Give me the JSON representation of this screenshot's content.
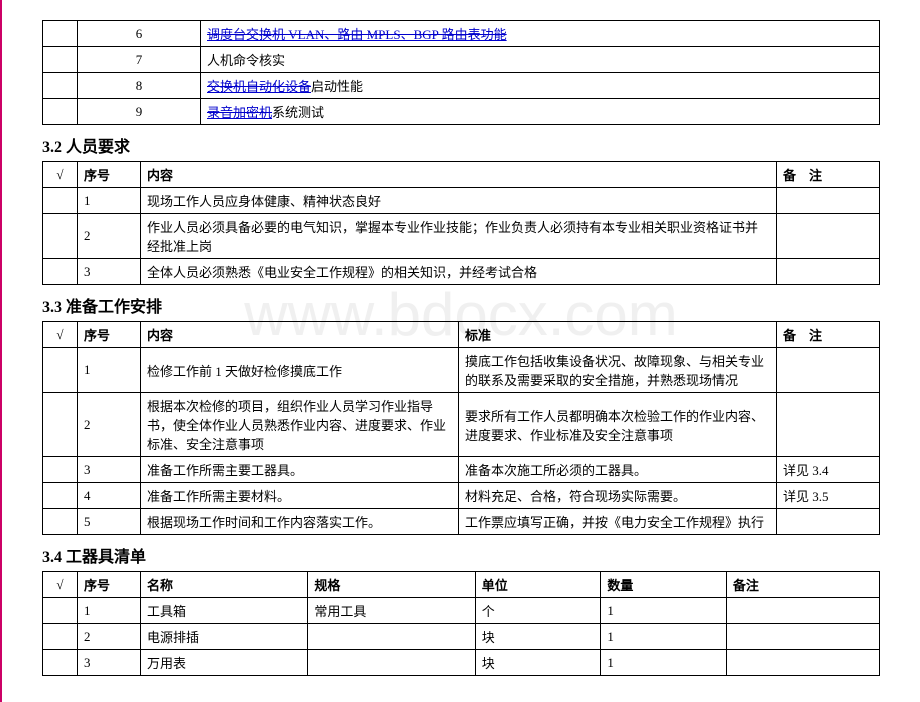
{
  "table0": {
    "rows": [
      {
        "num": "6",
        "content_parts": [
          {
            "t": "调度台交换机 VLAN、路由 MPLS、BGP 路由表功能",
            "cls": "strike"
          }
        ]
      },
      {
        "num": "7",
        "content_parts": [
          {
            "t": "人机命令核实",
            "cls": ""
          }
        ]
      },
      {
        "num": "8",
        "content_parts": [
          {
            "t": "交换机自动化设备",
            "cls": "strike"
          },
          {
            "t": "启动性能",
            "cls": ""
          }
        ]
      },
      {
        "num": "9",
        "content_parts": [
          {
            "t": "录音加密机",
            "cls": "strike"
          },
          {
            "t": "系统测试",
            "cls": ""
          }
        ]
      }
    ]
  },
  "section32": {
    "title": "3.2 人员要求",
    "headers": {
      "check": "√",
      "num": "序号",
      "content": "内容",
      "remark": "备　注"
    },
    "rows": [
      {
        "num": "1",
        "content": "现场工作人员应身体健康、精神状态良好",
        "remark": ""
      },
      {
        "num": "2",
        "content": "作业人员必须具备必要的电气知识，掌握本专业作业技能；作业负责人必须持有本专业相关职业资格证书并经批准上岗",
        "remark": ""
      },
      {
        "num": "3",
        "content": "全体人员必须熟悉《电业安全工作规程》的相关知识，并经考试合格",
        "remark": ""
      }
    ]
  },
  "section33": {
    "title": "3.3 准备工作安排",
    "headers": {
      "check": "√",
      "num": "序号",
      "content": "内容",
      "std": "标准",
      "remark": "备　注"
    },
    "rows": [
      {
        "num": "1",
        "content": "检修工作前 1 天做好检修摸底工作",
        "std": "摸底工作包括收集设备状况、故障现象、与相关专业的联系及需要采取的安全措施，并熟悉现场情况",
        "remark": ""
      },
      {
        "num": "2",
        "content": "根据本次检修的项目，组织作业人员学习作业指导书，使全体作业人员熟悉作业内容、进度要求、作业标准、安全注意事项",
        "std": "要求所有工作人员都明确本次检验工作的作业内容、进度要求、作业标准及安全注意事项",
        "remark": ""
      },
      {
        "num": "3",
        "content": "准备工作所需主要工器具。",
        "std": "准备本次施工所必须的工器具。",
        "remark": "详见 3.4"
      },
      {
        "num": "4",
        "content": "准备工作所需主要材料。",
        "std": "材料充足、合格，符合现场实际需要。",
        "remark": "详见 3.5"
      },
      {
        "num": "5",
        "content": "根据现场工作时间和工作内容落实工作。",
        "std": "工作票应填写正确，并按《电力安全工作规程》执行",
        "remark": ""
      }
    ]
  },
  "section34": {
    "title": "3.4 工器具清单",
    "headers": {
      "check": "√",
      "num": "序号",
      "name": "名称",
      "spec": "规格",
      "unit": "单位",
      "qty": "数量",
      "remark": "备注"
    },
    "rows": [
      {
        "num": "1",
        "name": "工具箱",
        "spec": "常用工具",
        "unit": "个",
        "qty": "1",
        "remark": ""
      },
      {
        "num": "2",
        "name": "电源排插",
        "spec": "",
        "unit": "块",
        "qty": "1",
        "remark": ""
      },
      {
        "num": "3",
        "name": "万用表",
        "spec": "",
        "unit": "块",
        "qty": "1",
        "remark": ""
      }
    ]
  },
  "watermark": "www.bdocx.com"
}
